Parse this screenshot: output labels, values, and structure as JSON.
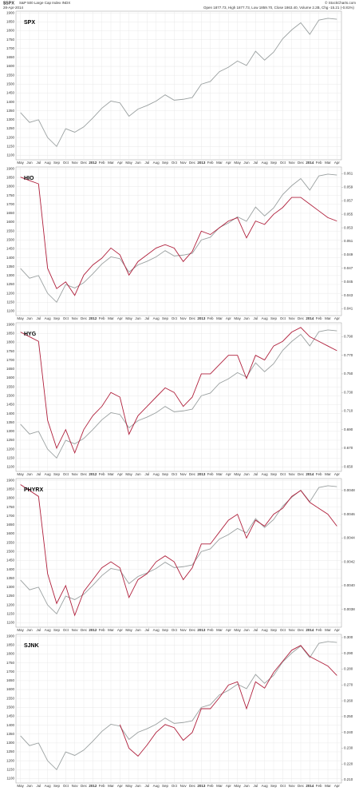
{
  "header": {
    "symbol": "$SPX",
    "description": "S&P 500 Large Cap Index INDX",
    "date": "28-Apr-2014",
    "source": "© StockCharts.com",
    "quote": "Open 1877.73, High 1877.73, Low 1859.70, Close 1863.40, Volume 2.2B, Chg -15.21 (-0.81%)"
  },
  "chart_data": [
    {
      "type": "line",
      "label_series": 0,
      "categories": [
        "May",
        "Jun",
        "Jul",
        "Aug",
        "Sep",
        "Oct",
        "Nov",
        "Dec",
        "2012",
        "Feb",
        "Mar",
        "Apr",
        "May",
        "Jun",
        "Jul",
        "Aug",
        "Sep",
        "Oct",
        "Nov",
        "Dec",
        "2013",
        "Feb",
        "Mar",
        "Apr",
        "May",
        "Jun",
        "Jul",
        "Aug",
        "Sep",
        "Oct",
        "Nov",
        "Dec",
        "2014",
        "Feb",
        "Mar",
        "Apr"
      ],
      "ylim": [
        1075,
        1910
      ],
      "yticks": [
        1100,
        1150,
        1200,
        1250,
        1300,
        1350,
        1400,
        1450,
        1500,
        1550,
        1600,
        1650,
        1700,
        1750,
        1800,
        1850,
        1900
      ],
      "grid": true,
      "series": [
        {
          "name": "SPX",
          "color": "#9aa0a0",
          "values": [
            1340,
            1285,
            1300,
            1200,
            1150,
            1250,
            1230,
            1260,
            1310,
            1365,
            1405,
            1395,
            1320,
            1360,
            1380,
            1405,
            1440,
            1410,
            1415,
            1425,
            1500,
            1515,
            1570,
            1595,
            1630,
            1605,
            1685,
            1635,
            1680,
            1755,
            1805,
            1845,
            1780,
            1860,
            1870,
            1865
          ]
        }
      ]
    },
    {
      "type": "line",
      "label_series": 1,
      "categories": [
        "May",
        "Jun",
        "Jul",
        "Aug",
        "Sep",
        "Oct",
        "Nov",
        "Dec",
        "2012",
        "Feb",
        "Mar",
        "Apr",
        "May",
        "Jun",
        "Jul",
        "Aug",
        "Sep",
        "Oct",
        "Nov",
        "Dec",
        "2013",
        "Feb",
        "Mar",
        "Apr",
        "May",
        "Jun",
        "Jul",
        "Aug",
        "Sep",
        "Oct",
        "Nov",
        "Dec",
        "2014",
        "Feb",
        "Mar",
        "Apr"
      ],
      "ylim": [
        1075,
        1910
      ],
      "yticks": [
        1100,
        1150,
        1200,
        1250,
        1300,
        1350,
        1400,
        1450,
        1500,
        1550,
        1600,
        1650,
        1700,
        1750,
        1800,
        1850,
        1900
      ],
      "grid": true,
      "y2lim": [
        0.04,
        0.062
      ],
      "y2ticks": [
        0.041,
        0.043,
        0.045,
        0.047,
        0.049,
        0.051,
        0.053,
        0.055,
        0.057,
        0.059,
        0.061
      ],
      "series": [
        {
          "color": "#9aa0a0",
          "values": [
            1340,
            1285,
            1300,
            1200,
            1150,
            1250,
            1230,
            1260,
            1310,
            1365,
            1405,
            1395,
            1320,
            1360,
            1380,
            1405,
            1440,
            1410,
            1415,
            1425,
            1500,
            1515,
            1570,
            1595,
            1630,
            1605,
            1685,
            1635,
            1680,
            1755,
            1805,
            1845,
            1780,
            1860,
            1870,
            1865
          ]
        },
        {
          "name": "HIO",
          "color": "#b0203c",
          "axis": "y2",
          "values": [
            0.0605,
            0.06,
            0.0595,
            0.047,
            0.044,
            0.045,
            0.043,
            0.046,
            0.0475,
            0.0485,
            0.05,
            0.049,
            0.046,
            0.048,
            0.049,
            0.05,
            0.0505,
            0.05,
            0.048,
            0.0495,
            0.0525,
            0.052,
            0.053,
            0.054,
            0.0545,
            0.0515,
            0.054,
            0.0535,
            0.055,
            0.056,
            0.0575,
            0.0575,
            0.0565,
            0.0555,
            0.0545,
            0.054
          ]
        }
      ]
    },
    {
      "type": "line",
      "label_series": 1,
      "categories": [
        "May",
        "Jun",
        "Jul",
        "Aug",
        "Sep",
        "Oct",
        "Nov",
        "Dec",
        "2012",
        "Feb",
        "Mar",
        "Apr",
        "May",
        "Jun",
        "Jul",
        "Aug",
        "Sep",
        "Oct",
        "Nov",
        "Dec",
        "2013",
        "Feb",
        "Mar",
        "Apr",
        "May",
        "Jun",
        "Jul",
        "Aug",
        "Sep",
        "Oct",
        "Nov",
        "Dec",
        "2014",
        "Feb",
        "Mar",
        "Apr"
      ],
      "ylim": [
        1075,
        1910
      ],
      "yticks": [
        1100,
        1150,
        1200,
        1250,
        1300,
        1350,
        1400,
        1450,
        1500,
        1550,
        1600,
        1650,
        1700,
        1750,
        1800,
        1850,
        1900
      ],
      "grid": true,
      "y2lim": [
        0.645,
        0.805
      ],
      "y2ticks": [
        {
          "value": 0.65,
          "label": "0.650"
        },
        {
          "value": 0.67,
          "label": "0.670"
        },
        {
          "value": 0.69,
          "label": "0.690"
        },
        {
          "value": 0.71,
          "label": "0.710"
        },
        {
          "value": 0.73,
          "label": "0.730"
        },
        {
          "value": 0.75,
          "label": "0.750"
        },
        {
          "value": 0.77,
          "label": "0.770"
        },
        {
          "value": 0.79,
          "label": "0.790"
        }
      ],
      "series": [
        {
          "color": "#9aa0a0",
          "values": [
            1340,
            1285,
            1300,
            1200,
            1150,
            1250,
            1230,
            1260,
            1310,
            1365,
            1405,
            1395,
            1320,
            1360,
            1380,
            1405,
            1440,
            1410,
            1415,
            1425,
            1500,
            1515,
            1570,
            1595,
            1630,
            1605,
            1685,
            1635,
            1680,
            1755,
            1805,
            1845,
            1780,
            1860,
            1870,
            1865
          ]
        },
        {
          "name": "HYG",
          "color": "#b0203c",
          "axis": "y2",
          "values": [
            0.795,
            0.79,
            0.785,
            0.7,
            0.67,
            0.69,
            0.665,
            0.69,
            0.705,
            0.715,
            0.73,
            0.725,
            0.685,
            0.705,
            0.715,
            0.725,
            0.735,
            0.73,
            0.715,
            0.725,
            0.75,
            0.75,
            0.76,
            0.77,
            0.77,
            0.745,
            0.77,
            0.765,
            0.78,
            0.785,
            0.795,
            0.8,
            0.79,
            0.785,
            0.78,
            0.775
          ]
        }
      ]
    },
    {
      "type": "line",
      "label_series": 1,
      "categories": [
        "May",
        "Jun",
        "Jul",
        "Aug",
        "Sep",
        "Oct",
        "Nov",
        "Dec",
        "2012",
        "Feb",
        "Mar",
        "Apr",
        "May",
        "Jun",
        "Jul",
        "Aug",
        "Sep",
        "Oct",
        "Nov",
        "Dec",
        "2013",
        "Feb",
        "Mar",
        "Apr",
        "May",
        "Jun",
        "Jul",
        "Aug",
        "Sep",
        "Oct",
        "Nov",
        "Dec",
        "2014",
        "Feb",
        "Mar",
        "Apr"
      ],
      "ylim": [
        1075,
        1910
      ],
      "yticks": [
        1100,
        1150,
        1200,
        1250,
        1300,
        1350,
        1400,
        1450,
        1500,
        1550,
        1600,
        1650,
        1700,
        1750,
        1800,
        1850,
        1900
      ],
      "grid": true,
      "y2lim": [
        0.00365,
        0.0049
      ],
      "y2ticks": [
        {
          "value": 0.0038,
          "label": "0.0038"
        },
        {
          "value": 0.004,
          "label": "0.0040"
        },
        {
          "value": 0.0042,
          "label": "0.0042"
        },
        {
          "value": 0.0044,
          "label": "0.0044"
        },
        {
          "value": 0.0046,
          "label": "0.0046"
        },
        {
          "value": 0.0048,
          "label": "0.0048"
        }
      ],
      "series": [
        {
          "color": "#9aa0a0",
          "values": [
            1340,
            1285,
            1300,
            1200,
            1150,
            1250,
            1230,
            1260,
            1310,
            1365,
            1405,
            1395,
            1320,
            1360,
            1380,
            1405,
            1440,
            1410,
            1415,
            1425,
            1500,
            1515,
            1570,
            1595,
            1630,
            1605,
            1685,
            1635,
            1680,
            1755,
            1805,
            1845,
            1780,
            1860,
            1870,
            1865
          ]
        },
        {
          "name": "PHYRX",
          "color": "#b0203c",
          "axis": "y2",
          "values": [
            0.00485,
            0.0048,
            0.00475,
            0.0041,
            0.00385,
            0.004,
            0.00375,
            0.00395,
            0.00405,
            0.00415,
            0.0042,
            0.00415,
            0.0039,
            0.00405,
            0.0041,
            0.0042,
            0.00425,
            0.0042,
            0.00405,
            0.00415,
            0.00435,
            0.00435,
            0.00445,
            0.00455,
            0.0046,
            0.0044,
            0.00455,
            0.0045,
            0.0046,
            0.00465,
            0.00475,
            0.0048,
            0.0047,
            0.00465,
            0.0046,
            0.0045
          ]
        }
      ]
    },
    {
      "type": "line",
      "label_series": 1,
      "categories": [
        "May",
        "Jun",
        "Jul",
        "Aug",
        "Sep",
        "Oct",
        "Nov",
        "Dec",
        "2012",
        "Feb",
        "Mar",
        "Apr",
        "May",
        "Jun",
        "Jul",
        "Aug",
        "Sep",
        "Oct",
        "Nov",
        "Dec",
        "2013",
        "Feb",
        "Mar",
        "Apr",
        "May",
        "Jun",
        "Jul",
        "Aug",
        "Sep",
        "Oct",
        "Nov",
        "Dec",
        "2014",
        "Feb",
        "Mar",
        "Apr"
      ],
      "ylim": [
        1075,
        1910
      ],
      "yticks": [
        1100,
        1150,
        1200,
        1250,
        1300,
        1350,
        1400,
        1450,
        1500,
        1550,
        1600,
        1650,
        1700,
        1750,
        1800,
        1850,
        1900
      ],
      "grid": true,
      "y2lim": [
        0.208,
        0.302
      ],
      "y2ticks": [
        {
          "value": 0.21,
          "label": "0.210"
        },
        {
          "value": 0.22,
          "label": "0.220"
        },
        {
          "value": 0.23,
          "label": "0.230"
        },
        {
          "value": 0.24,
          "label": "0.240"
        },
        {
          "value": 0.25,
          "label": "0.250"
        },
        {
          "value": 0.26,
          "label": "0.260"
        },
        {
          "value": 0.27,
          "label": "0.270"
        },
        {
          "value": 0.28,
          "label": "0.280"
        },
        {
          "value": 0.29,
          "label": "0.290"
        },
        {
          "value": 0.3,
          "label": "0.300"
        }
      ],
      "series": [
        {
          "color": "#9aa0a0",
          "values": [
            1340,
            1285,
            1300,
            1200,
            1150,
            1250,
            1230,
            1260,
            1310,
            1365,
            1405,
            1395,
            1320,
            1360,
            1380,
            1405,
            1440,
            1410,
            1415,
            1425,
            1500,
            1515,
            1570,
            1595,
            1630,
            1605,
            1685,
            1635,
            1680,
            1755,
            1805,
            1845,
            1780,
            1860,
            1870,
            1865
          ]
        },
        {
          "name": "SJNK",
          "color": "#b0203c",
          "axis": "y2",
          "values": [
            null,
            null,
            null,
            null,
            null,
            null,
            null,
            null,
            null,
            null,
            null,
            0.245,
            0.23,
            0.225,
            0.232,
            0.24,
            0.245,
            0.243,
            0.235,
            0.24,
            0.255,
            0.255,
            0.262,
            0.27,
            0.272,
            0.255,
            0.272,
            0.268,
            0.278,
            0.285,
            0.292,
            0.295,
            0.288,
            0.285,
            0.282,
            0.276
          ]
        }
      ]
    }
  ]
}
